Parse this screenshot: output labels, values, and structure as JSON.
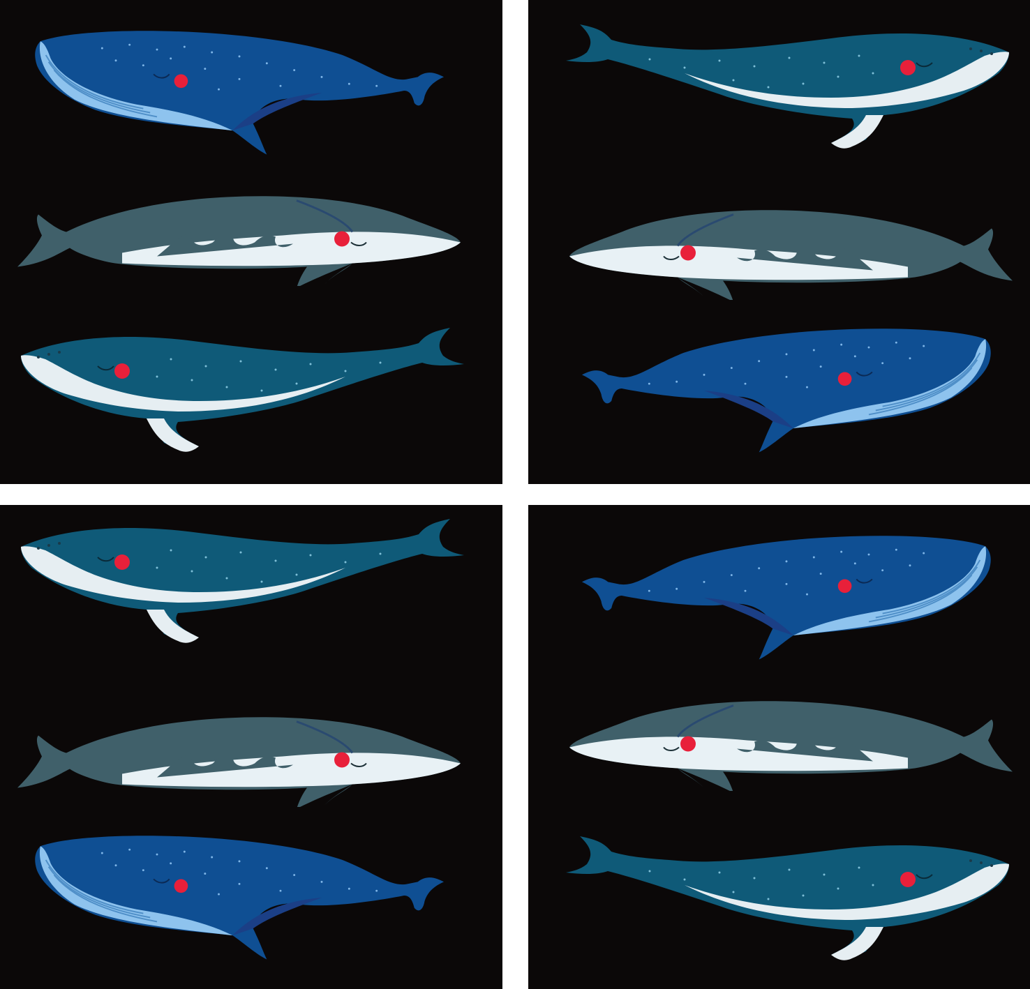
{
  "image": {
    "description_colors": {
      "background": "#0b0808",
      "gutter": "#ffffff",
      "blue_whale_body": "#0f4f93",
      "blue_whale_belly": "#8ec3ee",
      "fin_whale_body": "#40606a",
      "fin_whale_belly": "#e8f1f5",
      "humpback_body": "#0f5a78",
      "humpback_belly": "#e6eef2",
      "eye_spot": "#e8203a",
      "speckle": "#7fc0d8"
    },
    "panels": [
      {
        "name": "top-left",
        "whales": [
          "blue-whale",
          "fin-whale",
          "humpback-whale"
        ]
      },
      {
        "name": "top-right",
        "whales": [
          "humpback-whale",
          "fin-whale",
          "blue-whale"
        ]
      },
      {
        "name": "bottom-left",
        "whales": [
          "humpback-whale",
          "fin-whale",
          "blue-whale"
        ]
      },
      {
        "name": "bottom-right",
        "whales": [
          "blue-whale",
          "fin-whale",
          "humpback-whale"
        ]
      }
    ]
  }
}
